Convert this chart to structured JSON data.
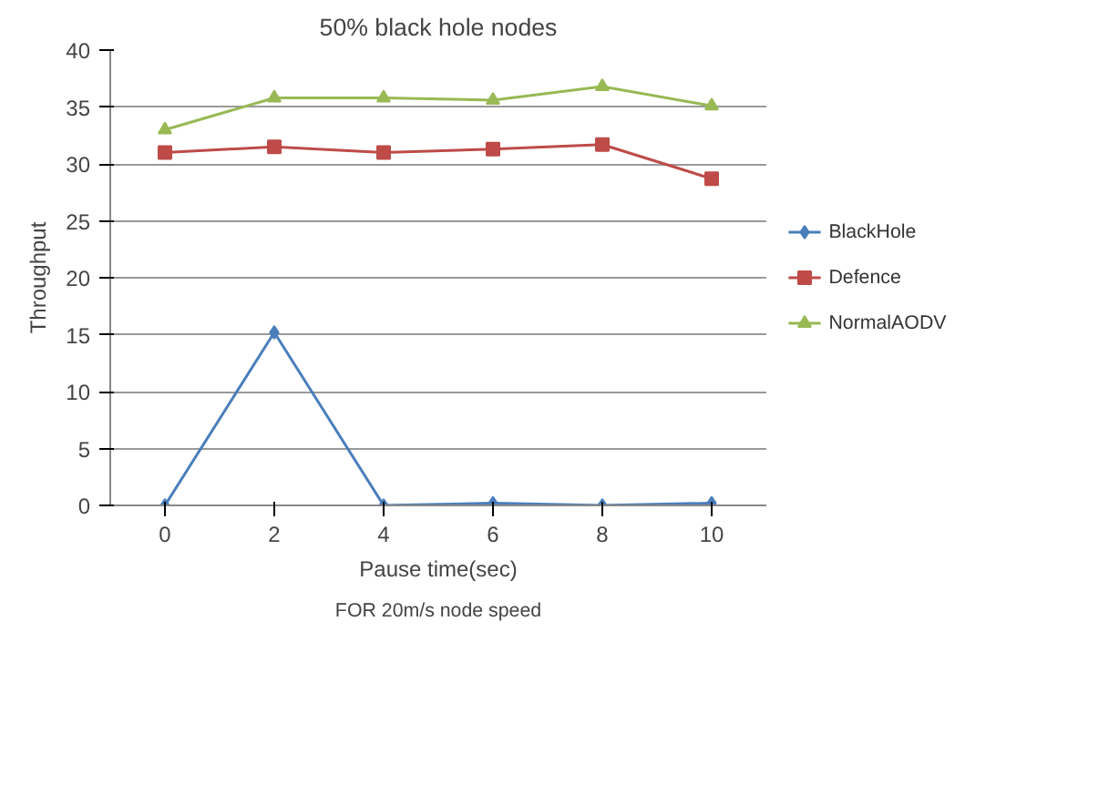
{
  "chart_data": {
    "type": "line",
    "title": "50% black hole nodes",
    "xlabel": "Pause time(sec)",
    "ylabel": "Throughput",
    "categories": [
      "0",
      "2",
      "4",
      "6",
      "8",
      "10"
    ],
    "series": [
      {
        "name": "BlackHole",
        "color": "#4a7ebb",
        "marker": "diamond",
        "values": [
          0,
          15.2,
          0,
          0.2,
          0,
          0.2
        ]
      },
      {
        "name": "Defence",
        "color": "#be4b48",
        "marker": "square",
        "values": [
          31,
          31.5,
          31,
          31.3,
          31.7,
          28.7
        ]
      },
      {
        "name": "NormalAODV",
        "color": "#98b954",
        "marker": "triangle",
        "values": [
          33,
          35.8,
          35.8,
          35.6,
          36.8,
          35.1
        ]
      }
    ],
    "ylim": [
      0,
      40
    ],
    "yticks": [
      0,
      5,
      10,
      15,
      20,
      25,
      30,
      35,
      40
    ],
    "grid": "y",
    "legend": "right",
    "annotations": [
      "FOR 20m/s node speed"
    ]
  }
}
